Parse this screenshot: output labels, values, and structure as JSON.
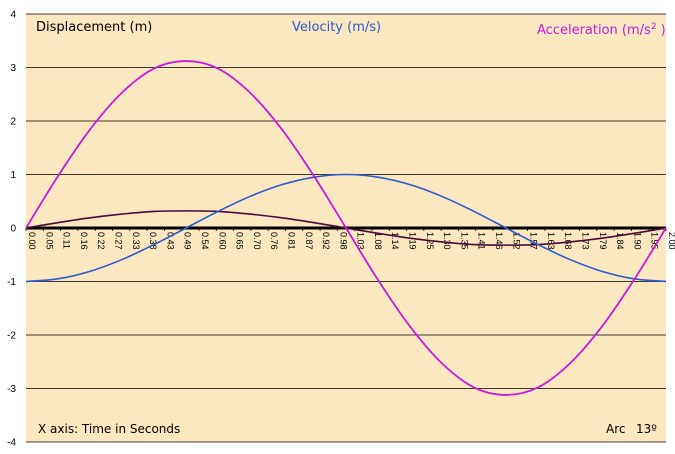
{
  "chart_data": {
    "type": "line",
    "title": "",
    "xlabel": "",
    "ylabel": "",
    "ylim": [
      -4,
      4
    ],
    "xlim": [
      0,
      2
    ],
    "grid": true,
    "y_ticks": [
      "4",
      "3",
      "2",
      "1",
      "0",
      "-1",
      "-2",
      "-3",
      "-4"
    ],
    "x_ticks": [
      "0.00",
      "0.05",
      "0.11",
      "0.16",
      "0.22",
      "0.27",
      "0.33",
      "0.38",
      "0.43",
      "0.49",
      "0.54",
      "0.60",
      "0.65",
      "0.70",
      "0.76",
      "0.81",
      "0.87",
      "0.92",
      "0.98",
      "1.03",
      "1.08",
      "1.14",
      "1.19",
      "1.25",
      "1.30",
      "1.35",
      "1.41",
      "1.46",
      "1.52",
      "1.57",
      "1.63",
      "1.68",
      "1.73",
      "1.79",
      "1.84",
      "1.90",
      "1.95",
      "2.00"
    ],
    "colors": {
      "background": "#fbe7c0",
      "grid": "#000000",
      "displacement": "#4b0a3c",
      "velocity": "#2a5bd0",
      "acceleration": "#c81ad8"
    },
    "series": [
      {
        "name": "Displacement (m)",
        "x": [
          0,
          0.1,
          0.2,
          0.3,
          0.4,
          0.5,
          0.6,
          0.7,
          0.8,
          0.9,
          1.0,
          1.1,
          1.2,
          1.3,
          1.4,
          1.5,
          1.6,
          1.7,
          1.8,
          1.9,
          2.0
        ],
        "values": [
          0,
          0.1,
          0.19,
          0.26,
          0.31,
          0.32,
          0.31,
          0.26,
          0.19,
          0.1,
          0,
          -0.1,
          -0.19,
          -0.26,
          -0.31,
          -0.32,
          -0.31,
          -0.26,
          -0.19,
          -0.1,
          0
        ]
      },
      {
        "name": "Velocity (m/s)",
        "x": [
          0,
          0.1,
          0.2,
          0.3,
          0.4,
          0.5,
          0.6,
          0.7,
          0.8,
          0.9,
          1.0,
          1.1,
          1.2,
          1.3,
          1.4,
          1.5,
          1.6,
          1.7,
          1.8,
          1.9,
          2.0
        ],
        "values": [
          -1,
          -0.95,
          -0.81,
          -0.59,
          -0.31,
          0,
          0.31,
          0.59,
          0.81,
          0.95,
          1,
          0.95,
          0.81,
          0.59,
          0.31,
          0,
          -0.31,
          -0.59,
          -0.81,
          -0.95,
          -1
        ]
      },
      {
        "name": "Acceleration (m/s",
        "x": [
          0,
          0.1,
          0.2,
          0.3,
          0.4,
          0.5,
          0.6,
          0.7,
          0.8,
          0.9,
          1.0,
          1.1,
          1.2,
          1.3,
          1.4,
          1.5,
          1.6,
          1.7,
          1.8,
          1.9,
          2.0
        ],
        "values": [
          0,
          0.97,
          1.84,
          2.53,
          2.98,
          3.12,
          2.98,
          2.53,
          1.84,
          0.97,
          0,
          -0.97,
          -1.84,
          -2.53,
          -2.98,
          -3.12,
          -2.98,
          -2.53,
          -1.84,
          -0.97,
          0
        ]
      }
    ],
    "legend": {
      "displacement": "Displacement (m)",
      "velocity": "Velocity (m/s)",
      "acceleration": "Acceleration (m/s",
      "acceleration_sup": "2",
      "acceleration_close": " )"
    },
    "annotations": {
      "x_axis_note": "X axis: Time in Seconds",
      "arc_label": "Arc",
      "arc_value": "13º"
    }
  }
}
